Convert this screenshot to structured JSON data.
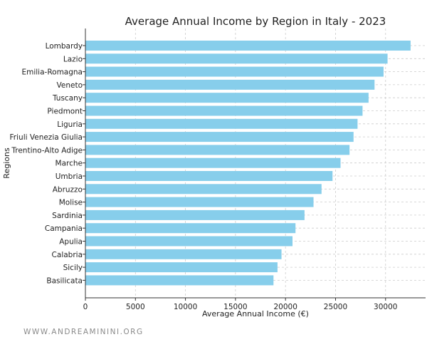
{
  "chart_data": {
    "type": "bar",
    "orientation": "horizontal",
    "title": "Average Annual Income by Region in Italy - 2023",
    "xlabel": "Average Annual Income (€)",
    "ylabel": "Regions",
    "xlim": [
      0,
      34000
    ],
    "xticks": [
      0,
      5000,
      10000,
      15000,
      20000,
      25000,
      30000
    ],
    "grid": true,
    "bar_color": "#87ceeb",
    "categories": [
      "Lombardy",
      "Lazio",
      "Emilia-Romagna",
      "Veneto",
      "Tuscany",
      "Piedmont",
      "Liguria",
      "Friuli Venezia Giulia",
      "Trentino-Alto Adige",
      "Marche",
      "Umbria",
      "Abruzzo",
      "Molise",
      "Sardinia",
      "Campania",
      "Apulia",
      "Calabria",
      "Sicily",
      "Basilicata"
    ],
    "values": [
      32500,
      30200,
      29800,
      28900,
      28300,
      27700,
      27200,
      26800,
      26400,
      25500,
      24700,
      23600,
      22800,
      21900,
      21000,
      20700,
      19600,
      19200,
      18800
    ]
  },
  "watermark": "WWW.ANDREAMININI.ORG"
}
